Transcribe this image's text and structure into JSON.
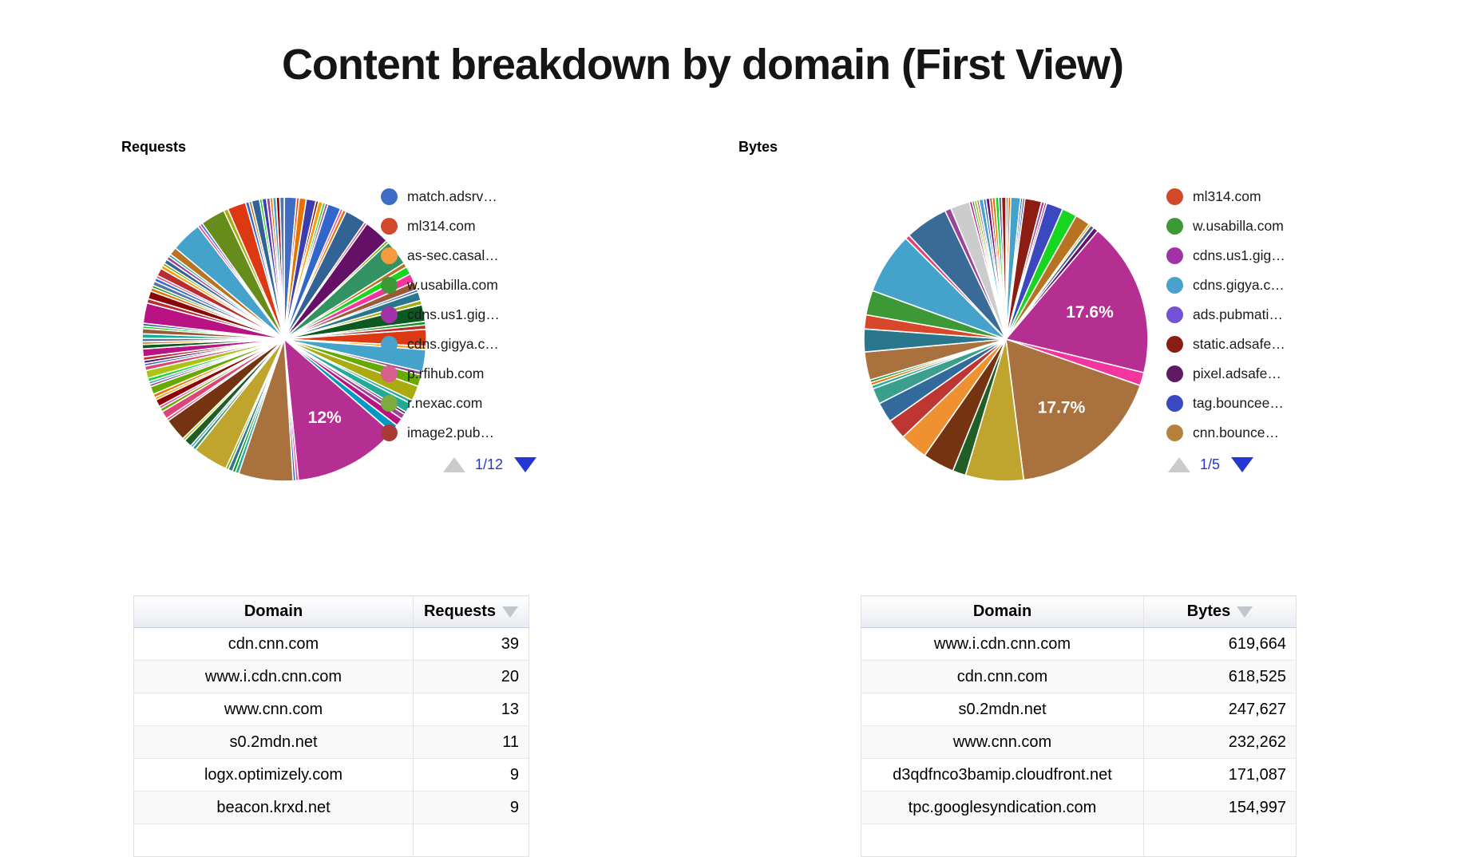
{
  "page": {
    "title": "Content breakdown by domain (First View)"
  },
  "charts": {
    "requests": {
      "title": "Requests",
      "legend": {
        "page": "1/12",
        "items": [
          {
            "label": "match.adsrv…",
            "color": "#3f6dc4"
          },
          {
            "label": "ml314.com",
            "color": "#d2492a"
          },
          {
            "label": "as-sec.casal…",
            "color": "#f59b3d"
          },
          {
            "label": "w.usabilla.com",
            "color": "#3d9935"
          },
          {
            "label": "cdns.us1.gig…",
            "color": "#a232a8"
          },
          {
            "label": "cdns.gigya.c…",
            "color": "#49a2cb"
          },
          {
            "label": "p.rfihub.com",
            "color": "#d8608f"
          },
          {
            "label": "r.nexac.com",
            "color": "#7aad3e"
          },
          {
            "label": "image2.pub…",
            "color": "#ab3a36"
          }
        ]
      }
    },
    "bytes": {
      "title": "Bytes",
      "legend": {
        "page": "1/5",
        "items": [
          {
            "label": "ml314.com",
            "color": "#d2492a"
          },
          {
            "label": "w.usabilla.com",
            "color": "#3d9935"
          },
          {
            "label": "cdns.us1.gig…",
            "color": "#a232a8"
          },
          {
            "label": "cdns.gigya.c…",
            "color": "#49a2cb"
          },
          {
            "label": "ads.pubmati…",
            "color": "#7452d8"
          },
          {
            "label": "static.adsafe…",
            "color": "#8c1d12"
          },
          {
            "label": "pixel.adsafe…",
            "color": "#5e1a63"
          },
          {
            "label": "tag.bouncee…",
            "color": "#3a49bf"
          },
          {
            "label": "cnn.bounce…",
            "color": "#b5823e"
          }
        ]
      }
    }
  },
  "chart_data": [
    {
      "type": "pie",
      "title": "Requests",
      "legend_position": "right",
      "visible_percent_labels": [
        "12%"
      ],
      "slices": [
        [
          1.4,
          "#3f6dc4"
        ],
        [
          0.3,
          "#dc3912"
        ],
        [
          0.8,
          "#e67300"
        ],
        [
          1.1,
          "#3b3eac"
        ],
        [
          0.3,
          "#8b0707"
        ],
        [
          0.5,
          "#ff9900"
        ],
        [
          0.3,
          "#16d620"
        ],
        [
          0.3,
          "#994499"
        ],
        [
          1.5,
          "#3366cc"
        ],
        [
          0.3,
          "#f4359e"
        ],
        [
          0.4,
          "#e67300"
        ],
        [
          2.4,
          "#316395"
        ],
        [
          0.3,
          "#dd4477"
        ],
        [
          2.9,
          "#651067"
        ],
        [
          0.3,
          "#66aa00"
        ],
        [
          2.9,
          "#329262"
        ],
        [
          0.5,
          "#b77322"
        ],
        [
          0.9,
          "#16d620"
        ],
        [
          1.0,
          "#f4359e"
        ],
        [
          0.9,
          "#9c5935"
        ],
        [
          0.3,
          "#3366cc"
        ],
        [
          1.0,
          "#2a778d"
        ],
        [
          0.5,
          "#aaaa11"
        ],
        [
          1.9,
          "#0c5922"
        ],
        [
          0.4,
          "#109618"
        ],
        [
          0.5,
          "#b82e2e"
        ],
        [
          1.9,
          "#dc3912"
        ],
        [
          0.4,
          "#ff9900"
        ],
        [
          2.5,
          "#45a3cb"
        ],
        [
          0.4,
          "#994499"
        ],
        [
          1.3,
          "#66aa00"
        ],
        [
          1.7,
          "#aaaa11"
        ],
        [
          0.4,
          "#22aa99"
        ],
        [
          1.1,
          "#22aa99"
        ],
        [
          0.3,
          "#651067"
        ],
        [
          0.6,
          "#994499"
        ],
        [
          0.9,
          "#b91383"
        ],
        [
          1.0,
          "#0099c6"
        ],
        [
          12.0,
          "#b52e91",
          "12%"
        ],
        [
          0.3,
          "#f4359e"
        ],
        [
          0.3,
          "#3366cc"
        ],
        [
          6.2,
          "#a8713e"
        ],
        [
          0.4,
          "#22aa99"
        ],
        [
          0.35,
          "#109618"
        ],
        [
          0.5,
          "#2a778d"
        ],
        [
          0.3,
          "#66aa00"
        ],
        [
          4.0,
          "#bfa42e"
        ],
        [
          0.4,
          "#329262"
        ],
        [
          0.3,
          "#45a3cb"
        ],
        [
          0.9,
          "#205e26"
        ],
        [
          0.3,
          "#a9c413"
        ],
        [
          2.6,
          "#743411"
        ],
        [
          0.3,
          "#dd4477"
        ],
        [
          0.9,
          "#dd4477"
        ],
        [
          0.4,
          "#66aa00"
        ],
        [
          0.3,
          "#f4359e"
        ],
        [
          0.8,
          "#8b0707"
        ],
        [
          0.3,
          "#ff9900"
        ],
        [
          0.4,
          "#e67300"
        ],
        [
          0.9,
          "#66aa00"
        ],
        [
          0.3,
          "#994499"
        ],
        [
          0.3,
          "#45a3cb"
        ],
        [
          0.4,
          "#16d620"
        ],
        [
          0.9,
          "#a9c413"
        ],
        [
          0.5,
          "#dd4477"
        ],
        [
          0.3,
          "#3366cc"
        ],
        [
          0.35,
          "#651067"
        ],
        [
          0.4,
          "#b82e2e"
        ],
        [
          0.9,
          "#b91383"
        ],
        [
          0.5,
          "#0c5922"
        ],
        [
          0.3,
          "#e67300"
        ],
        [
          0.4,
          "#5574a6"
        ],
        [
          0.5,
          "#22aa99"
        ],
        [
          0.6,
          "#9c5935"
        ],
        [
          0.3,
          "#16d620"
        ],
        [
          0.3,
          "#3b3eac"
        ],
        [
          2.3,
          "#b91383"
        ],
        [
          0.5,
          "#b82e2e"
        ],
        [
          0.9,
          "#8b0707"
        ],
        [
          0.4,
          "#e67300"
        ],
        [
          0.3,
          "#109618"
        ],
        [
          0.5,
          "#5574a6"
        ],
        [
          0.4,
          "#3366cc"
        ],
        [
          0.3,
          "#dd4477"
        ],
        [
          0.9,
          "#b82e2e"
        ],
        [
          0.4,
          "#ff9900"
        ],
        [
          0.3,
          "#66aa00"
        ],
        [
          0.5,
          "#316395"
        ],
        [
          0.4,
          "#994499"
        ],
        [
          0.3,
          "#22aa99"
        ],
        [
          0.9,
          "#b77322"
        ],
        [
          3.5,
          "#45a3cb"
        ],
        [
          0.3,
          "#f4359e"
        ],
        [
          0.3,
          "#3366cc"
        ],
        [
          2.8,
          "#668d1c"
        ],
        [
          0.5,
          "#aaaa11"
        ],
        [
          2.1,
          "#dc3912"
        ],
        [
          0.4,
          "#3366cc"
        ],
        [
          0.3,
          "#b77322"
        ],
        [
          0.9,
          "#316395"
        ],
        [
          0.3,
          "#16d620"
        ],
        [
          0.5,
          "#3b3eac"
        ],
        [
          0.4,
          "#994499"
        ],
        [
          0.3,
          "#e67300"
        ],
        [
          0.4,
          "#45a3cb"
        ],
        [
          0.4,
          "#8b0707"
        ],
        [
          0.5,
          "#5574a6"
        ]
      ]
    },
    {
      "type": "pie",
      "title": "Bytes",
      "legend_position": "right",
      "visible_percent_labels": [
        "17.6%",
        "17.7%"
      ],
      "slices": [
        [
          0.25,
          "#dc3912"
        ],
        [
          0.3,
          "#e67300"
        ],
        [
          1.1,
          "#45a3cb"
        ],
        [
          0.25,
          "#3366cc"
        ],
        [
          0.25,
          "#3b3eac"
        ],
        [
          1.9,
          "#8b1d12"
        ],
        [
          0.35,
          "#994499"
        ],
        [
          0.25,
          "#b91383"
        ],
        [
          1.9,
          "#3a49bf"
        ],
        [
          1.7,
          "#16d620"
        ],
        [
          1.7,
          "#b77322"
        ],
        [
          0.25,
          "#ff9900"
        ],
        [
          0.45,
          "#316395"
        ],
        [
          0.55,
          "#651067"
        ],
        [
          17.6,
          "#b52e91",
          "17.6%"
        ],
        [
          1.5,
          "#f4359e"
        ],
        [
          17.7,
          "#a8713e",
          "17.7%"
        ],
        [
          6.6,
          "#bfa42e"
        ],
        [
          1.5,
          "#205e26"
        ],
        [
          3.6,
          "#743411"
        ],
        [
          3.2,
          "#ef9031"
        ],
        [
          2.3,
          "#bd3632"
        ],
        [
          2.3,
          "#336a9c"
        ],
        [
          1.8,
          "#3aa08d"
        ],
        [
          0.4,
          "#22aa99"
        ],
        [
          0.35,
          "#e67300"
        ],
        [
          0.3,
          "#109618"
        ],
        [
          3.2,
          "#a9713d"
        ],
        [
          2.6,
          "#2a778d"
        ],
        [
          1.6,
          "#d9472b"
        ],
        [
          2.8,
          "#3d9935"
        ],
        [
          7.0,
          "#45a3cb"
        ],
        [
          0.5,
          "#dd4477"
        ],
        [
          4.9,
          "#3a6a96"
        ],
        [
          0.7,
          "#994499"
        ],
        [
          2.2,
          "#cccccc"
        ],
        [
          0.3,
          "#b91383"
        ],
        [
          0.25,
          "#109618"
        ],
        [
          0.3,
          "#a9c413"
        ],
        [
          0.25,
          "#994499"
        ],
        [
          0.5,
          "#45a3cb"
        ],
        [
          0.3,
          "#3366cc"
        ],
        [
          0.4,
          "#651067"
        ],
        [
          0.3,
          "#dc3912"
        ],
        [
          0.35,
          "#e67300"
        ],
        [
          0.4,
          "#16d620"
        ],
        [
          0.3,
          "#3b3eac"
        ],
        [
          0.5,
          "#8b1d12"
        ]
      ]
    }
  ],
  "tables": {
    "requests": {
      "headers": {
        "domain": "Domain",
        "value": "Requests"
      },
      "rows": [
        {
          "domain": "cdn.cnn.com",
          "value": "39"
        },
        {
          "domain": "www.i.cdn.cnn.com",
          "value": "20"
        },
        {
          "domain": "www.cnn.com",
          "value": "13"
        },
        {
          "domain": "s0.2mdn.net",
          "value": "11"
        },
        {
          "domain": "logx.optimizely.com",
          "value": "9"
        },
        {
          "domain": "beacon.krxd.net",
          "value": "9"
        }
      ]
    },
    "bytes": {
      "headers": {
        "domain": "Domain",
        "value": "Bytes"
      },
      "rows": [
        {
          "domain": "www.i.cdn.cnn.com",
          "value": "619,664"
        },
        {
          "domain": "cdn.cnn.com",
          "value": "618,525"
        },
        {
          "domain": "s0.2mdn.net",
          "value": "247,627"
        },
        {
          "domain": "www.cnn.com",
          "value": "232,262"
        },
        {
          "domain": "d3qdfnco3bamip.cloudfront.net",
          "value": "171,087"
        },
        {
          "domain": "tpc.googlesyndication.com",
          "value": "154,997"
        }
      ]
    }
  }
}
